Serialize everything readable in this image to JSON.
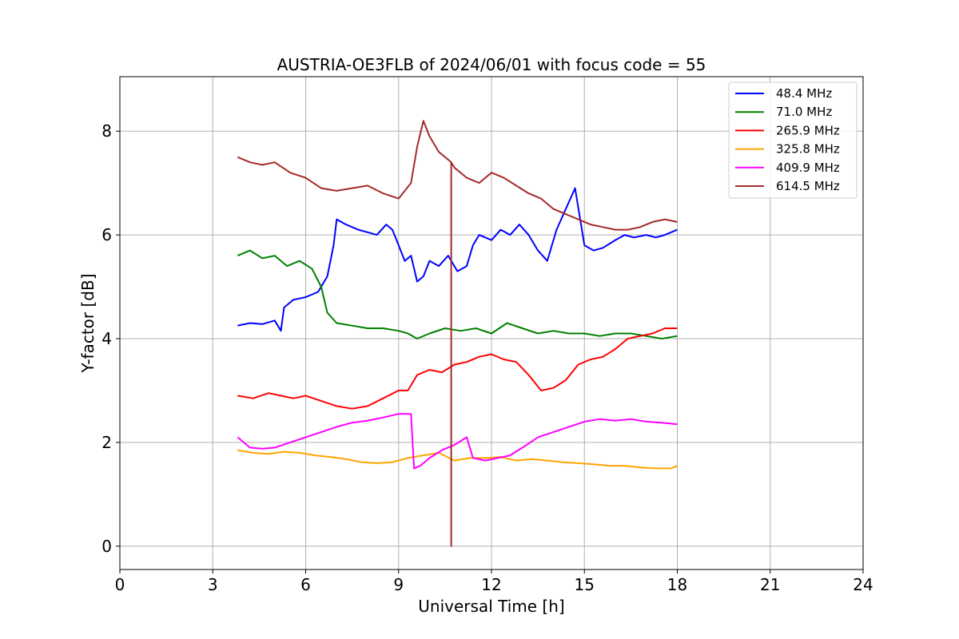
{
  "chart_data": {
    "type": "line",
    "title": "AUSTRIA-OE3FLB of 2024/06/01 with focus code = 55",
    "xlabel": "Universal Time [h]",
    "ylabel": "Y-factor [dB]",
    "xlim": [
      0,
      24
    ],
    "ylim": [
      -0.45,
      9.05
    ],
    "xticks": [
      0,
      3,
      6,
      9,
      12,
      15,
      18,
      21,
      24
    ],
    "yticks": [
      0,
      2,
      4,
      6,
      8
    ],
    "grid": true,
    "legend_position": "top-right",
    "series": [
      {
        "name": "48.4 MHz",
        "color": "#0000ff",
        "x": [
          3.8,
          4.2,
          4.6,
          5.0,
          5.2,
          5.3,
          5.6,
          6.0,
          6.4,
          6.7,
          6.9,
          7.0,
          7.3,
          7.7,
          8.0,
          8.3,
          8.6,
          8.8,
          9.0,
          9.2,
          9.4,
          9.6,
          9.8,
          10.0,
          10.3,
          10.6,
          10.9,
          11.2,
          11.4,
          11.6,
          12.0,
          12.3,
          12.6,
          12.9,
          13.2,
          13.5,
          13.8,
          14.1,
          14.4,
          14.7,
          15.0,
          15.3,
          15.6,
          16.0,
          16.3,
          16.6,
          17.0,
          17.3,
          17.6,
          18.0
        ],
        "y": [
          4.25,
          4.3,
          4.28,
          4.35,
          4.15,
          4.6,
          4.75,
          4.8,
          4.9,
          5.2,
          5.8,
          6.3,
          6.2,
          6.1,
          6.05,
          6.0,
          6.2,
          6.1,
          5.8,
          5.5,
          5.6,
          5.1,
          5.2,
          5.5,
          5.4,
          5.6,
          5.3,
          5.4,
          5.8,
          6.0,
          5.9,
          6.1,
          6.0,
          6.2,
          6.0,
          5.7,
          5.5,
          6.1,
          6.5,
          6.9,
          5.8,
          5.7,
          5.75,
          5.9,
          6.0,
          5.95,
          6.0,
          5.95,
          6.0,
          6.1
        ]
      },
      {
        "name": "71.0 MHz",
        "color": "#008000",
        "x": [
          3.8,
          4.2,
          4.6,
          5.0,
          5.4,
          5.8,
          6.2,
          6.5,
          6.7,
          7.0,
          7.5,
          8.0,
          8.5,
          9.0,
          9.3,
          9.6,
          10.0,
          10.5,
          11.0,
          11.5,
          12.0,
          12.5,
          13.0,
          13.5,
          14.0,
          14.5,
          15.0,
          15.5,
          16.0,
          16.5,
          17.0,
          17.5,
          18.0
        ],
        "y": [
          5.6,
          5.7,
          5.55,
          5.6,
          5.4,
          5.5,
          5.35,
          5.0,
          4.5,
          4.3,
          4.25,
          4.2,
          4.2,
          4.15,
          4.1,
          4.0,
          4.1,
          4.2,
          4.15,
          4.2,
          4.1,
          4.3,
          4.2,
          4.1,
          4.15,
          4.1,
          4.1,
          4.05,
          4.1,
          4.1,
          4.05,
          4.0,
          4.05
        ]
      },
      {
        "name": "265.9 MHz",
        "color": "#ff0000",
        "x": [
          3.8,
          4.3,
          4.8,
          5.2,
          5.6,
          6.0,
          6.5,
          7.0,
          7.5,
          8.0,
          8.5,
          9.0,
          9.3,
          9.6,
          10.0,
          10.4,
          10.8,
          11.2,
          11.6,
          12.0,
          12.4,
          12.8,
          13.2,
          13.6,
          14.0,
          14.4,
          14.8,
          15.2,
          15.6,
          16.0,
          16.4,
          16.8,
          17.2,
          17.6,
          18.0
        ],
        "y": [
          2.9,
          2.85,
          2.95,
          2.9,
          2.85,
          2.9,
          2.8,
          2.7,
          2.65,
          2.7,
          2.85,
          3.0,
          3.0,
          3.3,
          3.4,
          3.35,
          3.5,
          3.55,
          3.65,
          3.7,
          3.6,
          3.55,
          3.3,
          3.0,
          3.05,
          3.2,
          3.5,
          3.6,
          3.65,
          3.8,
          4.0,
          4.05,
          4.1,
          4.2,
          4.2
        ]
      },
      {
        "name": "325.8 MHz",
        "color": "#ffa500",
        "x": [
          3.8,
          4.3,
          4.8,
          5.3,
          5.8,
          6.3,
          6.8,
          7.3,
          7.8,
          8.3,
          8.8,
          9.3,
          9.8,
          10.3,
          10.8,
          11.3,
          11.8,
          12.3,
          12.8,
          13.3,
          13.8,
          14.3,
          14.8,
          15.3,
          15.8,
          16.3,
          16.8,
          17.3,
          17.8,
          18.0
        ],
        "y": [
          1.85,
          1.8,
          1.78,
          1.82,
          1.8,
          1.75,
          1.72,
          1.68,
          1.62,
          1.6,
          1.62,
          1.7,
          1.75,
          1.8,
          1.65,
          1.7,
          1.7,
          1.72,
          1.65,
          1.68,
          1.65,
          1.62,
          1.6,
          1.58,
          1.55,
          1.55,
          1.52,
          1.5,
          1.5,
          1.55
        ]
      },
      {
        "name": "409.9 MHz",
        "color": "#ff00ff",
        "x": [
          3.8,
          4.2,
          4.6,
          5.0,
          5.5,
          6.0,
          6.5,
          7.0,
          7.5,
          8.0,
          8.5,
          9.0,
          9.4,
          9.5,
          9.7,
          10.0,
          10.4,
          10.8,
          11.2,
          11.4,
          11.8,
          12.2,
          12.6,
          13.0,
          13.5,
          14.0,
          14.5,
          15.0,
          15.5,
          16.0,
          16.5,
          17.0,
          17.5,
          18.0
        ],
        "y": [
          2.1,
          1.9,
          1.88,
          1.9,
          2.0,
          2.1,
          2.2,
          2.3,
          2.38,
          2.42,
          2.48,
          2.55,
          2.55,
          1.5,
          1.55,
          1.7,
          1.85,
          1.95,
          2.1,
          1.7,
          1.65,
          1.7,
          1.75,
          1.9,
          2.1,
          2.2,
          2.3,
          2.4,
          2.45,
          2.42,
          2.45,
          2.4,
          2.38,
          2.35
        ]
      },
      {
        "name": "614.5 MHz",
        "color": "#a52a2a",
        "x": [
          3.8,
          4.2,
          4.6,
          5.0,
          5.5,
          6.0,
          6.5,
          7.0,
          7.5,
          8.0,
          8.5,
          9.0,
          9.4,
          9.6,
          9.8,
          10.0,
          10.3,
          10.6,
          10.7,
          10.7,
          10.7,
          10.8,
          11.2,
          11.6,
          12.0,
          12.4,
          12.8,
          13.2,
          13.6,
          14.0,
          14.4,
          14.8,
          15.2,
          15.6,
          16.0,
          16.4,
          16.8,
          17.2,
          17.6,
          18.0
        ],
        "y": [
          7.5,
          7.4,
          7.35,
          7.4,
          7.2,
          7.1,
          6.9,
          6.85,
          6.9,
          6.95,
          6.8,
          6.7,
          7.0,
          7.7,
          8.2,
          7.9,
          7.6,
          7.45,
          7.4,
          0.0,
          7.4,
          7.3,
          7.1,
          7.0,
          7.2,
          7.1,
          6.95,
          6.8,
          6.7,
          6.5,
          6.4,
          6.3,
          6.2,
          6.15,
          6.1,
          6.1,
          6.15,
          6.25,
          6.3,
          6.25
        ]
      }
    ]
  }
}
